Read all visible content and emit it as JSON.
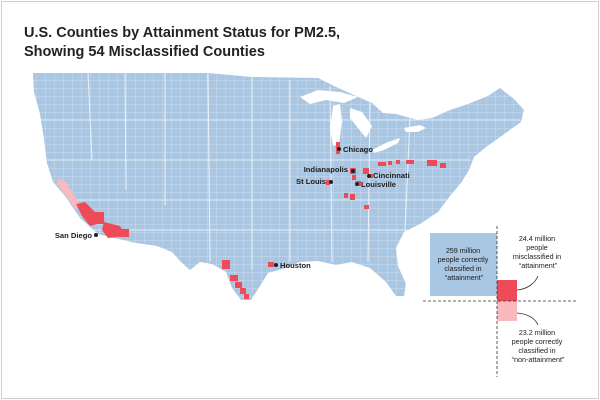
{
  "title": {
    "line1": "U.S. Counties by Attainment Status for PM2.5,",
    "line2": "Showing 54 Misclassified Counties"
  },
  "colors": {
    "attainment": "#a9c6e2",
    "misclassified": "#ef4a57",
    "non_attainment": "#f8b9bf",
    "county_lines": "#d6e4f2",
    "city_dot": "#222222"
  },
  "cities": [
    {
      "name": "Chicago"
    },
    {
      "name": "Indianapolis"
    },
    {
      "name": "St Louis"
    },
    {
      "name": "Cincinnati"
    },
    {
      "name": "Louisville"
    },
    {
      "name": "San Diego"
    },
    {
      "name": "Houston"
    }
  ],
  "legend": {
    "attainment_correct": [
      "259 million",
      "people correctly",
      "classified in",
      "“attainment”"
    ],
    "misclassified": [
      "24.4 million",
      "people",
      "misclassified in",
      "“attainment”"
    ],
    "nonattainment_correct": [
      "23.2 million",
      "people correctly",
      "classified in",
      "“non-attainment”"
    ]
  }
}
